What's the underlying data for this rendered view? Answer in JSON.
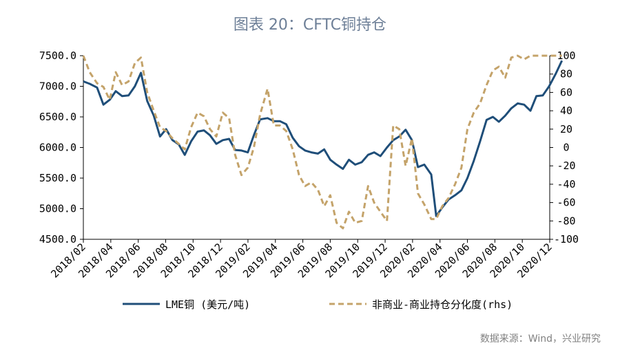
{
  "title": "图表 20：CFTC铜持仓",
  "source": "数据来源：Wind，兴业研究",
  "colors": {
    "lme": "#1f4e79",
    "position": "#c4a36a",
    "title": "#6d7f97"
  },
  "chart_data": {
    "type": "line",
    "title": "图表 20：CFTC铜持仓",
    "x_tick_labels": [
      "2018/02",
      "2018/04",
      "2018/06",
      "2018/08",
      "2018/10",
      "2018/12",
      "2019/02",
      "2019/04",
      "2019/06",
      "2019/08",
      "2019/10",
      "2019/12",
      "2020/02",
      "2020/04",
      "2020/06",
      "2020/08",
      "2020/10",
      "2020/12"
    ],
    "x_range": [
      "2018-02",
      "2020-12"
    ],
    "y_left": {
      "ticks": [
        "7500.0",
        "7000.0",
        "6500.0",
        "6000.0",
        "5500.0",
        "5000.0",
        "4500.0"
      ],
      "range": [
        4500,
        7500
      ]
    },
    "y_right": {
      "ticks": [
        "100",
        "80",
        "60",
        "40",
        "20",
        "0",
        "-20",
        "-40",
        "-60",
        "-80",
        "-100"
      ],
      "range": [
        -100,
        100
      ]
    },
    "grid": false,
    "legend_position": "bottom",
    "series": [
      {
        "name": "LME铜 (美元/吨)",
        "axis": "left",
        "style": "solid",
        "x": [
          "2018-02-01",
          "2018-02-15",
          "2018-03-01",
          "2018-03-15",
          "2018-03-29",
          "2018-04-12",
          "2018-04-26",
          "2018-05-10",
          "2018-05-24",
          "2018-06-07",
          "2018-06-21",
          "2018-07-05",
          "2018-07-19",
          "2018-08-02",
          "2018-08-16",
          "2018-08-30",
          "2018-09-13",
          "2018-09-27",
          "2018-10-11",
          "2018-10-25",
          "2018-11-08",
          "2018-11-22",
          "2018-12-06",
          "2018-12-20",
          "2019-01-03",
          "2019-01-17",
          "2019-01-31",
          "2019-02-14",
          "2019-02-28",
          "2019-03-14",
          "2019-03-28",
          "2019-04-11",
          "2019-04-25",
          "2019-05-09",
          "2019-05-23",
          "2019-06-06",
          "2019-06-20",
          "2019-07-04",
          "2019-07-18",
          "2019-08-01",
          "2019-08-15",
          "2019-08-29",
          "2019-09-12",
          "2019-09-26",
          "2019-10-10",
          "2019-10-24",
          "2019-11-07",
          "2019-11-21",
          "2019-12-05",
          "2019-12-19",
          "2020-01-02",
          "2020-01-16",
          "2020-01-30",
          "2020-02-13",
          "2020-02-27",
          "2020-03-12",
          "2020-03-23",
          "2020-04-06",
          "2020-04-20",
          "2020-05-04",
          "2020-05-18",
          "2020-06-01",
          "2020-06-15",
          "2020-06-29",
          "2020-07-13",
          "2020-07-27",
          "2020-08-10",
          "2020-08-24",
          "2020-09-07",
          "2020-09-21",
          "2020-10-05",
          "2020-10-19",
          "2020-11-02",
          "2020-11-16",
          "2020-11-30",
          "2020-12-14",
          "2020-12-28"
        ],
        "values": [
          7080,
          7040,
          6980,
          6700,
          6780,
          6920,
          6840,
          6850,
          7000,
          7220,
          6760,
          6520,
          6180,
          6300,
          6120,
          6050,
          5880,
          6100,
          6260,
          6280,
          6200,
          6060,
          6120,
          6140,
          5960,
          5950,
          5920,
          6200,
          6460,
          6480,
          6430,
          6430,
          6380,
          6160,
          6020,
          5950,
          5920,
          5900,
          5970,
          5800,
          5720,
          5650,
          5800,
          5720,
          5760,
          5880,
          5920,
          5860,
          6000,
          6120,
          6180,
          6290,
          6120,
          5680,
          5720,
          5560,
          4880,
          5020,
          5150,
          5220,
          5300,
          5500,
          5780,
          6100,
          6450,
          6500,
          6420,
          6520,
          6640,
          6720,
          6700,
          6600,
          6840,
          6850,
          7000,
          7200,
          7420
        ]
      },
      {
        "name": "非商业-商业持仓分化度(rhs)",
        "axis": "right",
        "style": "dashed",
        "x": [
          "2018-02-01",
          "2018-02-15",
          "2018-03-01",
          "2018-03-15",
          "2018-03-29",
          "2018-04-12",
          "2018-04-26",
          "2018-05-10",
          "2018-05-24",
          "2018-06-07",
          "2018-06-21",
          "2018-07-05",
          "2018-07-19",
          "2018-08-02",
          "2018-08-16",
          "2018-08-30",
          "2018-09-13",
          "2018-09-27",
          "2018-10-11",
          "2018-10-25",
          "2018-11-08",
          "2018-11-22",
          "2018-12-06",
          "2018-12-20",
          "2019-01-03",
          "2019-01-17",
          "2019-01-31",
          "2019-02-14",
          "2019-02-28",
          "2019-03-14",
          "2019-03-28",
          "2019-04-11",
          "2019-04-25",
          "2019-05-09",
          "2019-05-23",
          "2019-06-06",
          "2019-06-20",
          "2019-07-04",
          "2019-07-18",
          "2019-08-01",
          "2019-08-15",
          "2019-08-29",
          "2019-09-12",
          "2019-09-26",
          "2019-10-10",
          "2019-10-24",
          "2019-11-07",
          "2019-11-21",
          "2019-12-05",
          "2019-12-19",
          "2020-01-02",
          "2020-01-16",
          "2020-01-30",
          "2020-02-13",
          "2020-02-27",
          "2020-03-12",
          "2020-03-23",
          "2020-04-06",
          "2020-04-20",
          "2020-05-04",
          "2020-05-18",
          "2020-06-01",
          "2020-06-15",
          "2020-06-29",
          "2020-07-13",
          "2020-07-27",
          "2020-08-10",
          "2020-08-24",
          "2020-09-07",
          "2020-09-21",
          "2020-10-05",
          "2020-10-19",
          "2020-11-02",
          "2020-11-16",
          "2020-11-30",
          "2020-12-14",
          "2020-12-28"
        ],
        "values": [
          100,
          82,
          70,
          66,
          52,
          82,
          68,
          72,
          92,
          98,
          60,
          40,
          22,
          18,
          10,
          4,
          -2,
          22,
          38,
          34,
          20,
          12,
          38,
          32,
          -8,
          -30,
          -22,
          0,
          36,
          64,
          24,
          24,
          18,
          -2,
          -30,
          -42,
          -38,
          -46,
          -64,
          -52,
          -82,
          -88,
          -70,
          -82,
          -80,
          -42,
          -60,
          -70,
          -80,
          24,
          20,
          -20,
          10,
          -50,
          -62,
          -78,
          -78,
          -64,
          -55,
          -40,
          -22,
          20,
          38,
          48,
          68,
          84,
          88,
          76,
          98,
          100,
          96,
          100,
          100,
          100,
          100,
          100,
          100
        ]
      }
    ]
  }
}
